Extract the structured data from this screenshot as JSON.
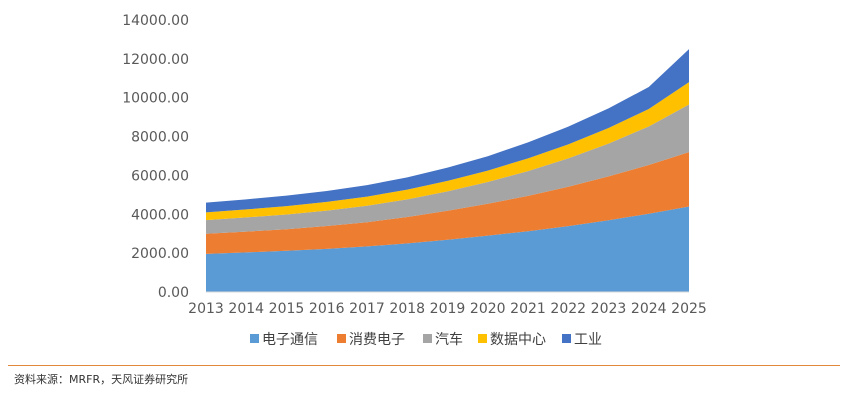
{
  "chart_data": {
    "type": "area",
    "stacked": true,
    "x": [
      "2013",
      "2014",
      "2015",
      "2016",
      "2017",
      "2018",
      "2019",
      "2020",
      "2021",
      "2022",
      "2023",
      "2024",
      "2025"
    ],
    "series": [
      {
        "name": "电子通信",
        "color": "#5b9bd5",
        "values": [
          1960,
          2040,
          2120,
          2220,
          2350,
          2500,
          2690,
          2900,
          3130,
          3390,
          3690,
          4030,
          4400
        ]
      },
      {
        "name": "消费电子",
        "color": "#ed7d31",
        "values": [
          1040,
          1070,
          1110,
          1180,
          1240,
          1360,
          1490,
          1640,
          1820,
          2030,
          2260,
          2510,
          2800
        ]
      },
      {
        "name": "汽车",
        "color": "#a5a5a5",
        "values": [
          700,
          730,
          760,
          790,
          850,
          910,
          1000,
          1120,
          1270,
          1460,
          1690,
          1980,
          2450
        ]
      },
      {
        "name": "数据中心",
        "color": "#ffc000",
        "values": [
          400,
          410,
          430,
          450,
          470,
          500,
          540,
          590,
          660,
          720,
          800,
          900,
          1150
        ]
      },
      {
        "name": "工业",
        "color": "#4472c4",
        "values": [
          500,
          520,
          540,
          560,
          590,
          630,
          680,
          740,
          820,
          910,
          1010,
          1130,
          1700
        ]
      }
    ],
    "ylim": [
      0,
      14000
    ],
    "yticks": [
      "0.00",
      "2000.00",
      "4000.00",
      "6000.00",
      "8000.00",
      "10000.00",
      "12000.00",
      "14000.00"
    ],
    "yticks_values": [
      0,
      2000,
      4000,
      6000,
      8000,
      10000,
      12000,
      14000
    ],
    "grid": false,
    "legend_position": "bottom"
  },
  "source": "资料来源：MRFR，天风证券研究所"
}
